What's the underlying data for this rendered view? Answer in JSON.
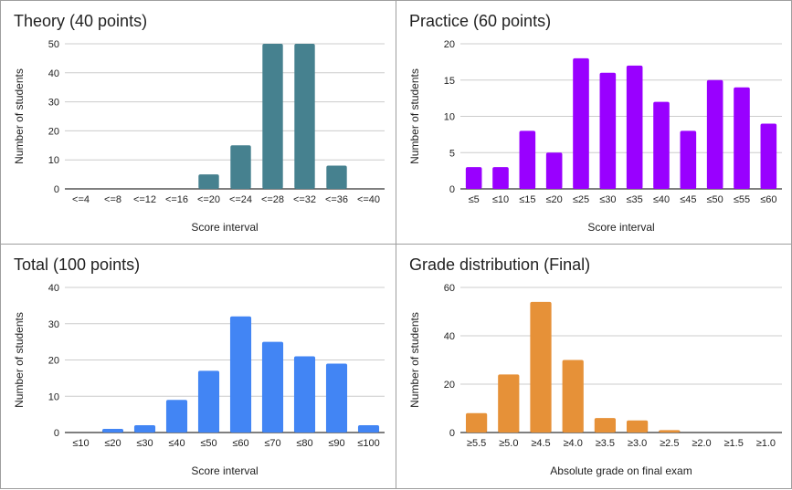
{
  "chart_data": [
    {
      "type": "bar",
      "title": "Theory (40 points)",
      "xlabel": "Score interval",
      "ylabel": "Number of students",
      "categories": [
        "<=4",
        "<=8",
        "<=12",
        "<=16",
        "<=20",
        "<=24",
        "<=28",
        "<=32",
        "<=36",
        "<=40"
      ],
      "values": [
        0,
        0,
        0,
        0,
        5,
        15,
        50,
        50,
        8,
        0
      ],
      "ylim": [
        0,
        50
      ],
      "yticks": [
        "0",
        "10",
        "20",
        "30",
        "40",
        "50"
      ],
      "color": "#46818f",
      "grid": true,
      "legend": "none"
    },
    {
      "type": "bar",
      "title": "Practice (60 points)",
      "xlabel": "Score interval",
      "ylabel": "Number of students",
      "categories": [
        "≤5",
        "≤10",
        "≤15",
        "≤20",
        "≤25",
        "≤30",
        "≤35",
        "≤40",
        "≤45",
        "≤50",
        "≤55",
        "≤60"
      ],
      "values": [
        3,
        3,
        8,
        5,
        18,
        16,
        17,
        12,
        8,
        15,
        14,
        9
      ],
      "ylim": [
        0,
        20
      ],
      "yticks": [
        "0",
        "5",
        "10",
        "15",
        "20"
      ],
      "color": "#9900ff",
      "grid": true,
      "legend": "none"
    },
    {
      "type": "bar",
      "title": "Total (100 points)",
      "xlabel": "Score interval",
      "ylabel": "Number of students",
      "categories": [
        "≤10",
        "≤20",
        "≤30",
        "≤40",
        "≤50",
        "≤60",
        "≤70",
        "≤80",
        "≤90",
        "≤100"
      ],
      "values": [
        0,
        1,
        2,
        9,
        17,
        32,
        25,
        21,
        19,
        2
      ],
      "ylim": [
        0,
        40
      ],
      "yticks": [
        "0",
        "10",
        "20",
        "30",
        "40"
      ],
      "color": "#4285f4",
      "grid": true,
      "legend": "none"
    },
    {
      "type": "bar",
      "title": "Grade distribution (Final)",
      "xlabel": "Absolute grade on final exam",
      "ylabel": "Number of students",
      "categories": [
        "≥5.5",
        "≥5.0",
        "≥4.5",
        "≥4.0",
        "≥3.5",
        "≥3.0",
        "≥2.5",
        "≥2.0",
        "≥1.5",
        "≥1.0"
      ],
      "values": [
        8,
        24,
        54,
        30,
        6,
        5,
        1,
        0,
        0,
        0
      ],
      "ylim": [
        0,
        60
      ],
      "yticks": [
        "0",
        "20",
        "40",
        "60"
      ],
      "color": "#e69138",
      "grid": true,
      "legend": "none"
    }
  ]
}
